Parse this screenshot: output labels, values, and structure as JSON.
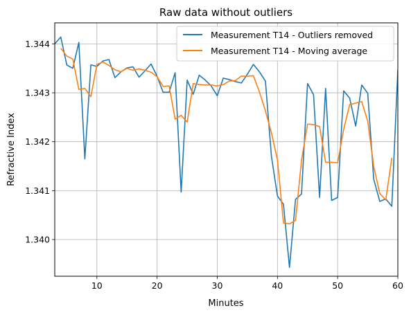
{
  "chart_data": {
    "type": "line",
    "title": "Raw data without outliers",
    "xlabel": "Minutes",
    "ylabel": "Refractive Index",
    "xlim": [
      3,
      60
    ],
    "ylim": [
      1.33925,
      1.34443
    ],
    "xticks": [
      10,
      20,
      30,
      40,
      50,
      60
    ],
    "yticks": [
      1.34,
      1.341,
      1.342,
      1.343,
      1.344
    ],
    "xtick_labels": [
      "10",
      "20",
      "30",
      "40",
      "50",
      "60"
    ],
    "ytick_labels": [
      "1.340",
      "1.341",
      "1.342",
      "1.343",
      "1.344"
    ],
    "grid": true,
    "legend_position": "top-right",
    "series": [
      {
        "name": "Measurement T14 - Outliers removed",
        "color": "#1f77b4",
        "x": [
          3,
          4,
          5,
          6,
          7,
          8,
          9,
          10,
          11,
          12,
          13,
          14,
          15,
          16,
          17,
          18,
          19,
          20,
          21,
          22,
          23,
          24,
          25,
          26,
          27,
          28,
          29,
          30,
          31,
          32,
          33,
          34,
          35,
          36,
          37,
          38,
          39,
          40,
          41,
          42,
          43,
          44,
          45,
          46,
          47,
          48,
          49,
          50,
          51,
          52,
          53,
          54,
          55,
          56,
          57,
          58,
          59,
          60
        ],
        "y": [
          1.344,
          1.34414,
          1.34357,
          1.3435,
          1.34403,
          1.34165,
          1.34357,
          1.34354,
          1.34365,
          1.34368,
          1.34331,
          1.34343,
          1.34351,
          1.34353,
          1.34332,
          1.34345,
          1.34359,
          1.34334,
          1.34301,
          1.34301,
          1.34341,
          1.34097,
          1.34326,
          1.34297,
          1.34336,
          1.34326,
          1.34314,
          1.34294,
          1.3433,
          1.34327,
          1.34323,
          1.3432,
          1.34338,
          1.34358,
          1.34343,
          1.34324,
          1.3417,
          1.34089,
          1.34072,
          1.33943,
          1.34082,
          1.34093,
          1.34319,
          1.34296,
          1.34086,
          1.34309,
          1.3408,
          1.34086,
          1.34304,
          1.34289,
          1.34232,
          1.34316,
          1.34299,
          1.34123,
          1.34078,
          1.34083,
          1.34068,
          1.34347
        ]
      },
      {
        "name": "Measurement T14 - Moving average",
        "color": "#ff7f0e",
        "x": [
          4,
          5,
          6,
          7,
          8,
          9,
          10,
          11,
          12,
          13,
          14,
          15,
          16,
          17,
          18,
          19,
          20,
          21,
          22,
          23,
          24,
          25,
          26,
          27,
          28,
          29,
          30,
          31,
          32,
          33,
          34,
          35,
          36,
          37,
          38,
          39,
          40,
          41,
          42,
          43,
          44,
          45,
          46,
          47,
          48,
          49,
          50,
          51,
          52,
          53,
          54,
          55,
          56,
          57,
          58,
          59
        ],
        "y": [
          1.34391,
          1.34375,
          1.34369,
          1.34307,
          1.34309,
          1.34292,
          1.34358,
          1.34363,
          1.34356,
          1.34347,
          1.34343,
          1.3435,
          1.34346,
          1.34349,
          1.34346,
          1.34342,
          1.34333,
          1.34313,
          1.34314,
          1.34246,
          1.34254,
          1.3424,
          1.34319,
          1.34317,
          1.34316,
          1.34316,
          1.34314,
          1.34317,
          1.34324,
          1.34325,
          1.34334,
          1.34334,
          1.34335,
          1.34302,
          1.34263,
          1.34218,
          1.34163,
          1.34034,
          1.34032,
          1.34039,
          1.34162,
          1.34236,
          1.34235,
          1.34231,
          1.34158,
          1.34158,
          1.34157,
          1.34225,
          1.34276,
          1.34279,
          1.34282,
          1.34242,
          1.34149,
          1.34094,
          1.34081,
          1.34167
        ]
      }
    ]
  }
}
